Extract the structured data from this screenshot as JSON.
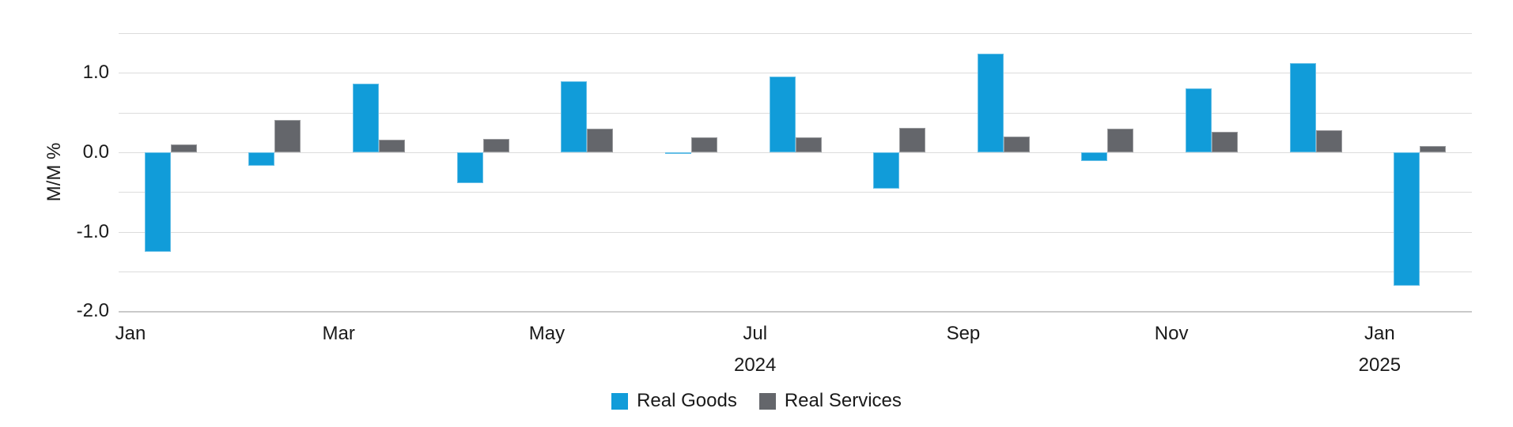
{
  "chart_data": {
    "type": "bar",
    "title": "",
    "ylabel": "M/M %",
    "xlabel": "",
    "categories": [
      "Jan 2024",
      "Feb 2024",
      "Mar 2024",
      "Apr 2024",
      "May 2024",
      "Jun 2024",
      "Jul 2024",
      "Aug 2024",
      "Sep 2024",
      "Oct 2024",
      "Nov 2024",
      "Dec 2024",
      "Jan 2025"
    ],
    "series": [
      {
        "name": "Real Goods",
        "color": "#119CD9",
        "values": [
          -1.25,
          -0.17,
          0.86,
          -0.39,
          0.89,
          -0.02,
          0.95,
          -0.46,
          1.24,
          -0.11,
          0.81,
          1.12,
          -1.68
        ]
      },
      {
        "name": "Real Services",
        "color": "#64666B",
        "values": [
          0.1,
          0.41,
          0.16,
          0.17,
          0.3,
          0.19,
          0.19,
          0.31,
          0.2,
          0.3,
          0.26,
          0.28,
          0.08
        ]
      }
    ],
    "ylim": [
      -2.0,
      1.5
    ],
    "grid_step": 0.5,
    "grid": true,
    "legend_position": "bottom",
    "yticks": [
      {
        "v": 1.0,
        "label": "1.0"
      },
      {
        "v": 0.0,
        "label": "0.0"
      },
      {
        "v": -1.0,
        "label": "-1.0"
      },
      {
        "v": -2.0,
        "label": "-2.0"
      }
    ],
    "xticks": [
      {
        "i": 0,
        "label": "Jan"
      },
      {
        "i": 2,
        "label": "Mar"
      },
      {
        "i": 4,
        "label": "May"
      },
      {
        "i": 6,
        "label": "Jul"
      },
      {
        "i": 8,
        "label": "Sep"
      },
      {
        "i": 10,
        "label": "Nov"
      },
      {
        "i": 12,
        "label": "Jan"
      }
    ],
    "year_labels": [
      {
        "i": 6,
        "label": "2024"
      },
      {
        "i": 12,
        "label": "2025"
      }
    ],
    "colors": {
      "grid": "#DCDCDC",
      "axis": "#C9C9C9",
      "text": "#1A1A1A",
      "background": "#FFFFFF"
    }
  }
}
